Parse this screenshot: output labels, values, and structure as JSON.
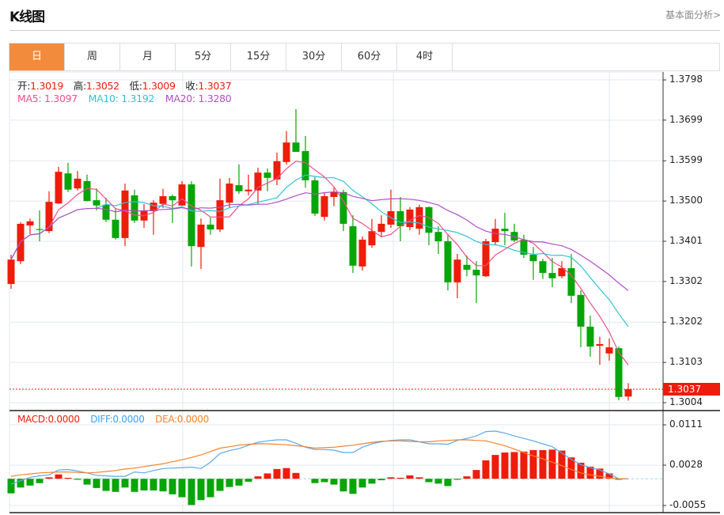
{
  "header": {
    "title": "K线图",
    "link": "基本面分析>"
  },
  "tabs": [
    {
      "label": "日",
      "active": true
    },
    {
      "label": "周"
    },
    {
      "label": "月"
    },
    {
      "label": "5分"
    },
    {
      "label": "15分"
    },
    {
      "label": "30分"
    },
    {
      "label": "60分"
    },
    {
      "label": "4时"
    }
  ],
  "ohlc_info": {
    "open_label": "开:",
    "open": "1.3019",
    "high_label": "高:",
    "high": "1.3052",
    "low_label": "低:",
    "low": "1.3009",
    "close_label": "收:",
    "close": "1.3037"
  },
  "ma_info": {
    "ma5": "MA5: 1.3097",
    "ma10": "MA10: 1.3192",
    "ma20": "MA20: 1.3280"
  },
  "macd_info": {
    "macd": "MACD:0.0000",
    "diff": "DIFF:0.0000",
    "dea": "DEA:0.0000"
  },
  "current_price": "1.3037",
  "colors": {
    "up": "#ee1c0a",
    "down": "#08a508",
    "ma5": "#ef4f86",
    "ma10": "#2fc3d8",
    "ma20": "#b04fc6",
    "diff": "#5aa9ef",
    "dea": "#f5822a",
    "active_tab": "#f28c3c"
  },
  "chart_data": [
    {
      "type": "candlestick",
      "ylim": [
        1.3004,
        1.3798
      ],
      "y_ticks": [
        "1.3798",
        "1.3699",
        "1.3599",
        "1.3500",
        "1.3401",
        "1.3302",
        "1.3202",
        "1.3103",
        "1.3004"
      ],
      "grid": true,
      "ma_periods": [
        5,
        10,
        20
      ],
      "candles_ocLH": [
        [
          1.3296,
          1.3356,
          1.3284,
          1.3368
        ],
        [
          1.3352,
          1.3444,
          1.3345,
          1.3448
        ],
        [
          1.344,
          1.345,
          1.3419,
          1.3457
        ],
        [
          1.3431,
          1.3429,
          1.3401,
          1.3477
        ],
        [
          1.3426,
          1.3498,
          1.3421,
          1.3524
        ],
        [
          1.3494,
          1.3572,
          1.3493,
          1.3584
        ],
        [
          1.3568,
          1.3528,
          1.3522,
          1.3594
        ],
        [
          1.3531,
          1.3555,
          1.3526,
          1.3574
        ],
        [
          1.3549,
          1.35,
          1.3499,
          1.3565
        ],
        [
          1.3502,
          1.3489,
          1.3477,
          1.3531
        ],
        [
          1.3491,
          1.3454,
          1.3448,
          1.3508
        ],
        [
          1.3454,
          1.3409,
          1.3405,
          1.3483
        ],
        [
          1.3409,
          1.3526,
          1.3389,
          1.3543
        ],
        [
          1.3514,
          1.3452,
          1.3446,
          1.3528
        ],
        [
          1.3452,
          1.3477,
          1.3434,
          1.3493
        ],
        [
          1.3475,
          1.3496,
          1.3417,
          1.3502
        ],
        [
          1.3493,
          1.3512,
          1.3483,
          1.353
        ],
        [
          1.3512,
          1.3502,
          1.3446,
          1.3516
        ],
        [
          1.3489,
          1.3541,
          1.3488,
          1.3549
        ],
        [
          1.3541,
          1.3389,
          1.3339,
          1.3549
        ],
        [
          1.3387,
          1.3442,
          1.3333,
          1.3457
        ],
        [
          1.3442,
          1.343,
          1.3417,
          1.3459
        ],
        [
          1.343,
          1.3502,
          1.3424,
          1.3555
        ],
        [
          1.3496,
          1.3543,
          1.3483,
          1.3557
        ],
        [
          1.3539,
          1.3524,
          1.3518,
          1.359
        ],
        [
          1.3524,
          1.3528,
          1.3514,
          1.3565
        ],
        [
          1.3526,
          1.357,
          1.3493,
          1.3582
        ],
        [
          1.357,
          1.3557,
          1.3524,
          1.358
        ],
        [
          1.3553,
          1.3598,
          1.3539,
          1.3619
        ],
        [
          1.3596,
          1.3644,
          1.359,
          1.3672
        ],
        [
          1.3644,
          1.3621,
          1.3621,
          1.3726
        ],
        [
          1.3623,
          1.3551,
          1.3533,
          1.366
        ],
        [
          1.3551,
          1.3469,
          1.3463,
          1.3559
        ],
        [
          1.3461,
          1.3512,
          1.3452,
          1.3522
        ],
        [
          1.351,
          1.3522,
          1.3487,
          1.3533
        ],
        [
          1.3522,
          1.3444,
          1.3426,
          1.3528
        ],
        [
          1.3438,
          1.3341,
          1.3323,
          1.3465
        ],
        [
          1.3339,
          1.3405,
          1.3329,
          1.3413
        ],
        [
          1.3391,
          1.3426,
          1.3385,
          1.3456
        ],
        [
          1.3424,
          1.3444,
          1.3413,
          1.3465
        ],
        [
          1.3442,
          1.3475,
          1.3434,
          1.3528
        ],
        [
          1.3475,
          1.3438,
          1.3401,
          1.351
        ],
        [
          1.3436,
          1.3479,
          1.3428,
          1.3485
        ],
        [
          1.3432,
          1.3485,
          1.3417,
          1.3491
        ],
        [
          1.3485,
          1.3422,
          1.3391,
          1.3487
        ],
        [
          1.3424,
          1.3401,
          1.337,
          1.3438
        ],
        [
          1.3401,
          1.33,
          1.328,
          1.3417
        ],
        [
          1.33,
          1.3356,
          1.3261,
          1.337
        ],
        [
          1.3343,
          1.3331,
          1.3315,
          1.3366
        ],
        [
          1.3331,
          1.3317,
          1.3249,
          1.3352
        ],
        [
          1.3315,
          1.3401,
          1.3313,
          1.3407
        ],
        [
          1.3399,
          1.3432,
          1.3391,
          1.3456
        ],
        [
          1.3432,
          1.3426,
          1.3391,
          1.3471
        ],
        [
          1.3424,
          1.3403,
          1.3399,
          1.3444
        ],
        [
          1.3405,
          1.3368,
          1.336,
          1.3417
        ],
        [
          1.3368,
          1.3352,
          1.3306,
          1.3387
        ],
        [
          1.3352,
          1.3323,
          1.3308,
          1.3358
        ],
        [
          1.3323,
          1.331,
          1.3288,
          1.336
        ],
        [
          1.3315,
          1.3335,
          1.331,
          1.3352
        ],
        [
          1.3335,
          1.3267,
          1.3249,
          1.337
        ],
        [
          1.3269,
          1.3191,
          1.314,
          1.328
        ],
        [
          1.3191,
          1.3142,
          1.3117,
          1.3218
        ],
        [
          1.3144,
          1.3148,
          1.3097,
          1.3166
        ],
        [
          1.3125,
          1.314,
          1.3107,
          1.3162
        ],
        [
          1.3138,
          1.3018,
          1.301,
          1.3142
        ],
        [
          1.3019,
          1.3037,
          1.3009,
          1.3052
        ]
      ]
    },
    {
      "type": "bar+line",
      "ylim": [
        -0.0055,
        0.0111
      ],
      "y_ticks": [
        "0.0111",
        "0.0028",
        "-0.0055"
      ],
      "macd_hist": [
        -0.003,
        -0.0018,
        -0.0014,
        -0.0009,
        0.0003,
        0.0009,
        0.0002,
        -0.0002,
        -0.0012,
        -0.0019,
        -0.0025,
        -0.0027,
        -0.0018,
        -0.0027,
        -0.0024,
        -0.0024,
        -0.0026,
        -0.0032,
        -0.0038,
        -0.0054,
        -0.0044,
        -0.0038,
        -0.0025,
        -0.0017,
        -0.0014,
        -0.0006,
        0.0005,
        0.0011,
        0.002,
        0.0022,
        0.0012,
        0.0,
        -0.0009,
        -0.0007,
        -0.0012,
        -0.0026,
        -0.0031,
        -0.0018,
        -0.001,
        -0.0003,
        0.0003,
        0.0002,
        0.0007,
        0.0003,
        -0.0007,
        -0.001,
        -0.0015,
        -0.0002,
        0.0005,
        0.0018,
        0.0038,
        0.0049,
        0.0054,
        0.0055,
        0.0056,
        0.0059,
        0.0059,
        0.006,
        0.0058,
        0.0044,
        0.0033,
        0.0025,
        0.0021,
        0.0011,
        -0.0002,
        0.0
      ],
      "diff": [
        -0.0011,
        -0.0004,
        0.0003,
        0.0006,
        0.0008,
        0.0018,
        0.0019,
        0.0016,
        0.0012,
        0.0007,
        0.0006,
        0.0005,
        0.0005,
        0.0014,
        0.0012,
        0.0017,
        0.0021,
        0.0022,
        0.0023,
        0.0024,
        0.0021,
        0.0034,
        0.0052,
        0.0058,
        0.0062,
        0.0069,
        0.0075,
        0.0078,
        0.008,
        0.008,
        0.0073,
        0.0065,
        0.006,
        0.006,
        0.0059,
        0.0054,
        0.0054,
        0.0065,
        0.0072,
        0.0076,
        0.0079,
        0.008,
        0.008,
        0.0076,
        0.0072,
        0.0072,
        0.0071,
        0.0079,
        0.0083,
        0.0088,
        0.0097,
        0.0098,
        0.0094,
        0.0088,
        0.0083,
        0.0078,
        0.0072,
        0.0066,
        0.0053,
        0.004,
        0.0029,
        0.0023,
        0.0018,
        0.001,
        0.0,
        0.0
      ],
      "dea": [
        0.0005,
        0.0008,
        0.001,
        0.0012,
        0.0013,
        0.0014,
        0.0014,
        0.0013,
        0.0012,
        0.0013,
        0.0015,
        0.0017,
        0.002,
        0.0022,
        0.0025,
        0.0028,
        0.0031,
        0.0035,
        0.0039,
        0.0044,
        0.0049,
        0.0056,
        0.0063,
        0.0066,
        0.0069,
        0.0071,
        0.0072,
        0.0072,
        0.0071,
        0.007,
        0.0068,
        0.0066,
        0.0063,
        0.0064,
        0.0065,
        0.0067,
        0.0069,
        0.0072,
        0.0075,
        0.0077,
        0.0078,
        0.0078,
        0.0077,
        0.0076,
        0.0076,
        0.0078,
        0.0079,
        0.008,
        0.008,
        0.0079,
        0.0078,
        0.0073,
        0.0068,
        0.0061,
        0.0054,
        0.0047,
        0.0041,
        0.0034,
        0.0027,
        0.0019,
        0.0012,
        0.0008,
        0.0005,
        0.0002,
        0.0,
        0.0
      ]
    }
  ]
}
